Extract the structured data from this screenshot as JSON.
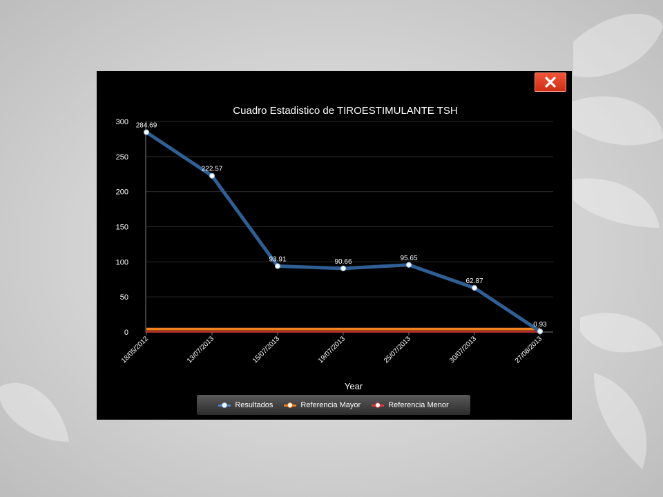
{
  "window": {
    "close_icon": "close-icon"
  },
  "colors": {
    "results_line": "#2f5f95",
    "ref_major": "#f5821f",
    "ref_minor": "#e03a3a",
    "grid": "#2b2b2b",
    "axis_text": "#ffffff",
    "close_button": "#e44128"
  },
  "chart_data": {
    "type": "line",
    "title": "Cuadro Estadistico de TIROESTIMULANTE TSH",
    "xlabel": "Year",
    "ylabel": "",
    "categories": [
      "18/05/2012",
      "13/07/2013",
      "15/07/2013",
      "19/07/2013",
      "25/07/2013",
      "30/07/2013",
      "27/08/2013"
    ],
    "ylim": [
      0,
      300
    ],
    "yticks": [
      "0",
      "50",
      "100",
      "150",
      "200",
      "250",
      "300"
    ],
    "grid": true,
    "legend_position": "bottom",
    "series": [
      {
        "name": "Resultados",
        "values": [
          284.69,
          222.57,
          93.91,
          90.66,
          95.65,
          62.87,
          0.93
        ],
        "labels": [
          "284.69",
          "222.57",
          "93.91",
          "90.66",
          "95.65",
          "62.87",
          "0.93"
        ]
      },
      {
        "name": "Referencia Mayor",
        "values": [
          4.2,
          4.2,
          4.2,
          4.2,
          4.2,
          4.2,
          4.2
        ]
      },
      {
        "name": "Referencia Menor",
        "values": [
          0.27,
          0.27,
          0.27,
          0.27,
          0.27,
          0.27,
          0.27
        ]
      }
    ]
  }
}
